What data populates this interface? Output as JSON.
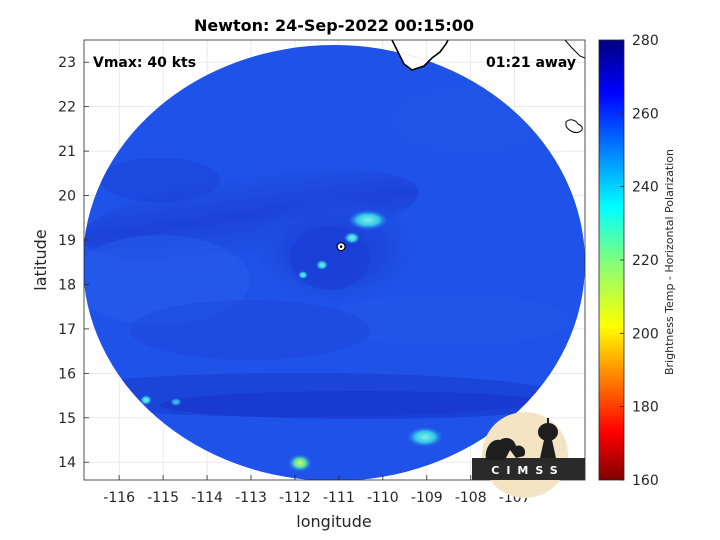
{
  "chart_data": {
    "type": "heatmap",
    "title": "Newton: 24-Sep-2022 00:15:00",
    "xlabel": "longitude",
    "ylabel": "latitude",
    "xlim": [
      -116.8,
      -105.4
    ],
    "ylim": [
      13.6,
      23.5
    ],
    "x_ticks": [
      -116,
      -115,
      -114,
      -113,
      -112,
      -111,
      -110,
      -109,
      -108,
      -107
    ],
    "y_ticks": [
      14,
      15,
      16,
      17,
      18,
      19,
      20,
      21,
      22,
      23
    ],
    "grid": true,
    "annotations": {
      "vmax": "Vmax: 40 kts",
      "time_offset": "01:21 away"
    },
    "storm_center": {
      "lon": -110.95,
      "lat": 18.85
    },
    "colorbar": {
      "label": "Brightness Temp - Horizontal Polarization",
      "range": [
        160,
        280
      ],
      "ticks": [
        160,
        180,
        200,
        220,
        240,
        260,
        280
      ],
      "colormap": "jet"
    }
  },
  "logo": {
    "text": "CIMSS"
  },
  "colors": {
    "background_field": "#1e4fe6",
    "cold_band": "#1736cc",
    "warm_spot": "#3fd8d8",
    "coastline": "#000000"
  }
}
